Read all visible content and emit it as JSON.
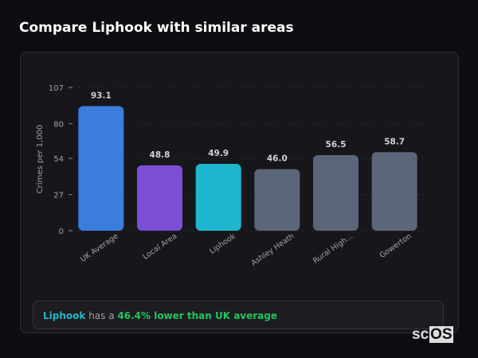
{
  "title": "Compare Liphook with similar areas",
  "chart_data": {
    "type": "bar",
    "ylabel": "Crimes per 1,000",
    "ylim": [
      0,
      107
    ],
    "yticks": [
      0,
      27,
      54,
      80,
      107
    ],
    "grid": true,
    "categories": [
      "UK Average",
      "Local Area",
      "Liphook",
      "Ashley Heath",
      "Rural High...",
      "Gowerton"
    ],
    "values": [
      93.1,
      48.8,
      49.9,
      46.0,
      56.5,
      58.7
    ],
    "value_labels": [
      "93.1",
      "48.8",
      "49.9",
      "46.0",
      "56.5",
      "58.7"
    ],
    "colors": [
      "#3b7ddd",
      "#7b4fd6",
      "#1fb6cf",
      "#5b6678",
      "#5b6678",
      "#5b6678"
    ]
  },
  "summary": {
    "area": "Liphook",
    "middle": " has a ",
    "result": "46.4% lower than UK average"
  },
  "logo": {
    "prefix": "sc",
    "boxed": "OS"
  }
}
